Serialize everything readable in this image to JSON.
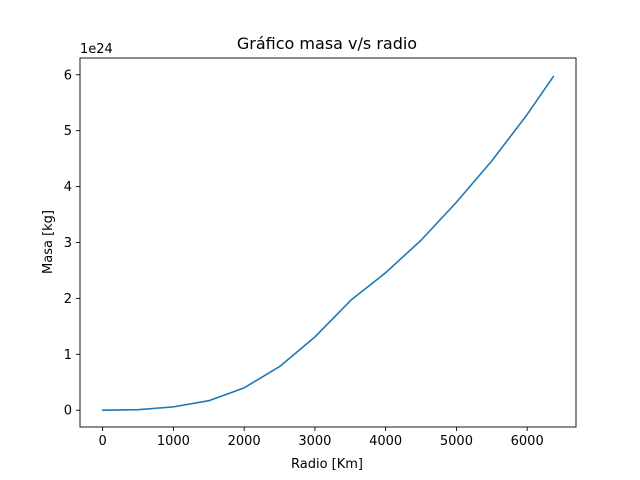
{
  "chart_data": {
    "type": "line",
    "title": "Gráfico masa v/s radio",
    "xlabel": "Radio [Km]",
    "ylabel": "Masa [kg]",
    "y_offset_label": "1e24",
    "xlim": [
      -320,
      6690
    ],
    "ylim": [
      -0.3,
      6.3
    ],
    "x_ticks": [
      0,
      1000,
      2000,
      3000,
      4000,
      5000,
      6000
    ],
    "y_ticks": [
      0,
      1,
      2,
      3,
      4,
      5,
      6
    ],
    "grid": false,
    "series": [
      {
        "color": "#1f77b4",
        "x": [
          0,
          500,
          1000,
          1500,
          2000,
          2500,
          3000,
          3480,
          3500,
          4000,
          4500,
          5000,
          5500,
          6000,
          6371
        ],
        "y": [
          0,
          0.01,
          0.06,
          0.17,
          0.4,
          0.78,
          1.31,
          1.93,
          1.96,
          2.46,
          3.04,
          3.72,
          4.46,
          5.29,
          5.97
        ]
      }
    ]
  }
}
